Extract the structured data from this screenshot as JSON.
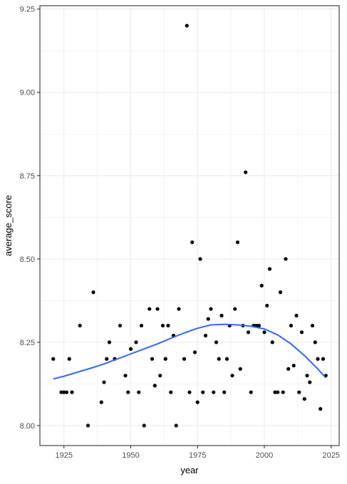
{
  "chart_data": {
    "type": "scatter",
    "xlabel": "year",
    "ylabel": "average_score",
    "xlim": [
      1916,
      2028
    ],
    "ylim": [
      7.94,
      9.26
    ],
    "x_ticks": [
      1925,
      1950,
      1975,
      2000,
      2025
    ],
    "x_tick_labels": [
      "1925",
      "1950",
      "1975",
      "2000",
      "2025"
    ],
    "y_ticks": [
      8.0,
      8.25,
      8.5,
      8.75,
      9.0,
      9.25
    ],
    "y_tick_labels": [
      "8.00",
      "8.25",
      "8.50",
      "8.75",
      "9.00",
      "9.25"
    ],
    "grid": true,
    "colors": {
      "points": "#000000",
      "smooth": "#3366FF",
      "grid": "#ebebeb",
      "panel_border": "#333333"
    },
    "series": [
      {
        "type": "scatter",
        "x": [
          1921,
          1924,
          1925,
          1926,
          1927,
          1928,
          1931,
          1934,
          1936,
          1939,
          1940,
          1941,
          1942,
          1944,
          1946,
          1948,
          1949,
          1950,
          1952,
          1953,
          1954,
          1955,
          1957,
          1958,
          1959,
          1960,
          1961,
          1962,
          1963,
          1964,
          1965,
          1966,
          1967,
          1968,
          1970,
          1971,
          1972,
          1973,
          1974,
          1975,
          1976,
          1977,
          1978,
          1979,
          1980,
          1981,
          1982,
          1983,
          1984,
          1985,
          1986,
          1987,
          1988,
          1989,
          1990,
          1991,
          1992,
          1993,
          1994,
          1995,
          1996,
          1997,
          1998,
          1999,
          2000,
          2001,
          2002,
          2003,
          2004,
          2005,
          2006,
          2007,
          2008,
          2009,
          2010,
          2011,
          2012,
          2013,
          2014,
          2015,
          2016,
          2017,
          2018,
          2019,
          2020,
          2021,
          2022,
          2023
        ],
        "y": [
          8.2,
          8.1,
          8.1,
          8.1,
          8.2,
          8.1,
          8.3,
          8.0,
          8.4,
          8.07,
          8.13,
          8.2,
          8.25,
          8.2,
          8.3,
          8.15,
          8.1,
          8.23,
          8.25,
          8.1,
          8.3,
          8.0,
          8.35,
          8.2,
          8.12,
          8.35,
          8.15,
          8.3,
          8.2,
          8.3,
          8.1,
          8.27,
          8.0,
          8.35,
          8.2,
          9.2,
          8.1,
          8.55,
          8.22,
          8.07,
          8.5,
          8.1,
          8.27,
          8.32,
          8.35,
          8.1,
          8.25,
          8.2,
          8.33,
          8.1,
          8.2,
          8.3,
          8.15,
          8.35,
          8.55,
          8.17,
          8.3,
          8.76,
          8.28,
          8.1,
          8.3,
          8.3,
          8.3,
          8.42,
          8.28,
          8.36,
          8.47,
          8.25,
          8.1,
          8.1,
          8.4,
          8.1,
          8.5,
          8.17,
          8.3,
          8.18,
          8.33,
          8.1,
          8.28,
          8.08,
          8.15,
          8.13,
          8.3,
          8.25,
          8.2,
          8.05,
          8.2,
          8.15
        ]
      },
      {
        "type": "line",
        "x": [
          1921,
          1925,
          1930,
          1935,
          1940,
          1945,
          1950,
          1955,
          1960,
          1965,
          1970,
          1975,
          1980,
          1985,
          1990,
          1995,
          2000,
          2005,
          2010,
          2015,
          2020,
          2023
        ],
        "y": [
          8.14,
          8.148,
          8.16,
          8.172,
          8.185,
          8.2,
          8.215,
          8.23,
          8.245,
          8.262,
          8.278,
          8.292,
          8.302,
          8.304,
          8.302,
          8.298,
          8.29,
          8.272,
          8.245,
          8.21,
          8.17,
          8.143
        ]
      }
    ]
  }
}
